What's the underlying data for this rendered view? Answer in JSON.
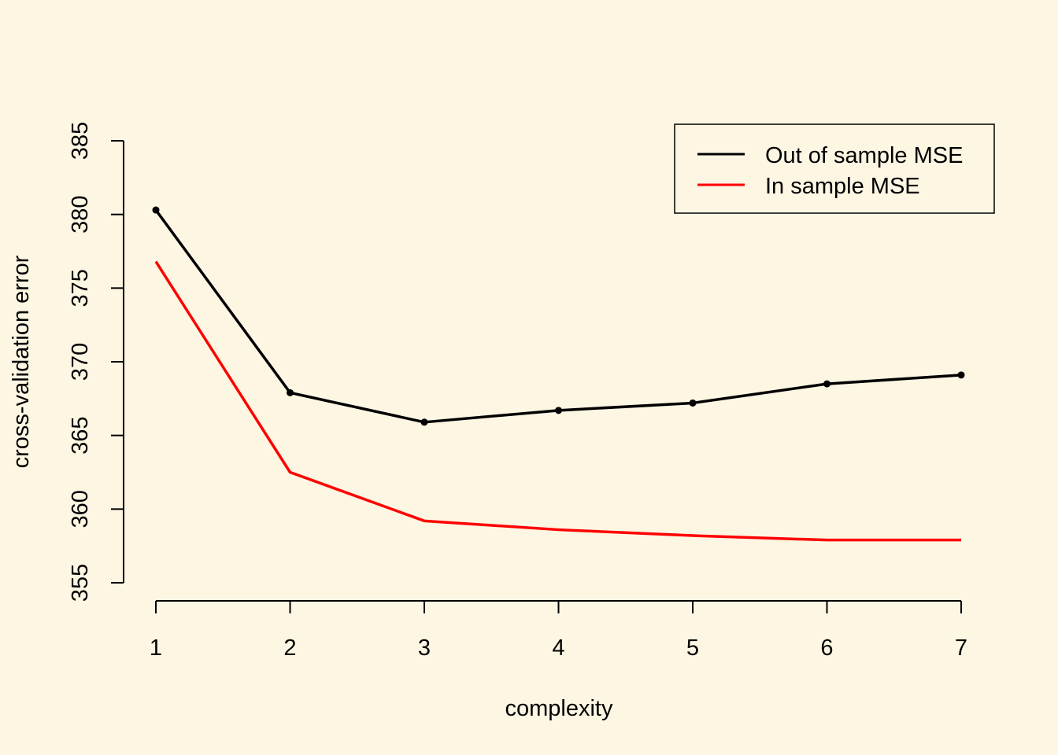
{
  "chart_data": {
    "type": "line",
    "title": "",
    "xlabel": "complexity",
    "ylabel": "cross-validation error",
    "x": [
      1,
      2,
      3,
      4,
      5,
      6,
      7
    ],
    "xticks": [
      "1",
      "2",
      "3",
      "4",
      "5",
      "6",
      "7"
    ],
    "yticks": [
      "355",
      "360",
      "365",
      "370",
      "375",
      "380",
      "385"
    ],
    "ytick_values": [
      355,
      360,
      365,
      370,
      375,
      380,
      385
    ],
    "ylim": [
      355,
      385
    ],
    "xlim": [
      1,
      7
    ],
    "grid": false,
    "legend_position": "top-right",
    "series": [
      {
        "name": "Out of sample MSE",
        "color": "#000000",
        "markers": true,
        "values": [
          380.3,
          367.9,
          365.9,
          366.7,
          367.2,
          368.5,
          369.1
        ]
      },
      {
        "name": "In sample MSE",
        "color": "#FF0000",
        "markers": false,
        "values": [
          376.8,
          362.5,
          359.2,
          358.6,
          358.2,
          357.9,
          357.9
        ]
      }
    ]
  }
}
